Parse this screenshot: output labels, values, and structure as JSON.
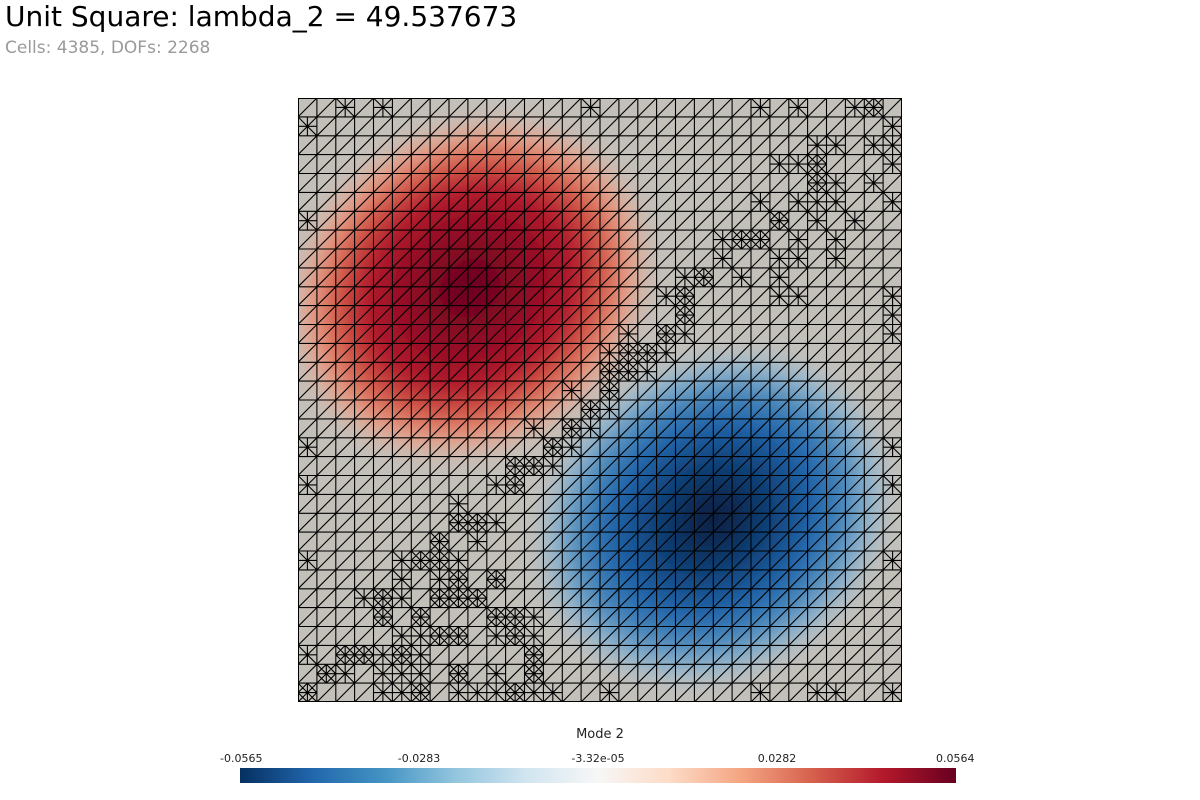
{
  "title": "Unit Square: lambda_2 = 49.537673",
  "subtitle": "Cells: 4385, DOFs: 2268",
  "colorbar": {
    "title": "Mode 2",
    "ticks": [
      "-0.0565",
      "-0.0283",
      "-3.32e-05",
      "0.0282",
      "0.0564"
    ],
    "min": -0.0565,
    "max": 0.0564,
    "colormap": [
      "#053061",
      "#2166ac",
      "#4393c3",
      "#92c5de",
      "#d1e5f0",
      "#f7f7f7",
      "#fddbc7",
      "#f4a582",
      "#d6604d",
      "#b2182b",
      "#67001f"
    ]
  },
  "plot": {
    "domain_x": [
      0,
      1
    ],
    "domain_y": [
      0,
      1
    ],
    "background_color": "#c3c0ba",
    "mesh_color": "#000000"
  }
}
